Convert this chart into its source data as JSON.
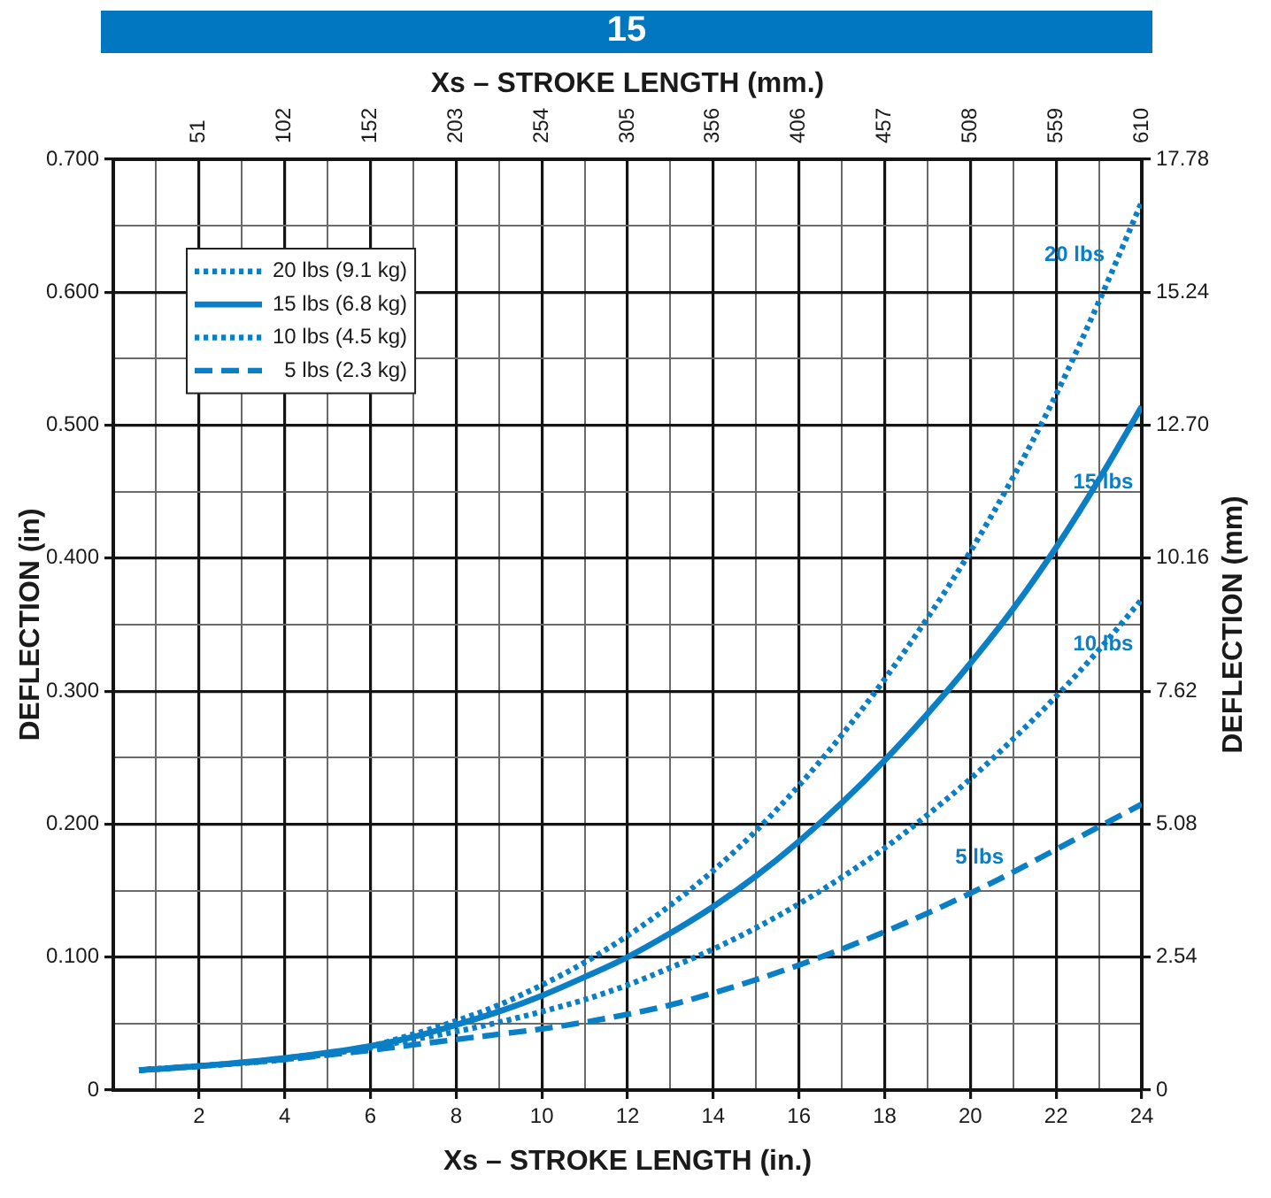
{
  "chart_data": {
    "type": "line",
    "title": "15",
    "xlabel": "Xs – STROKE LENGTH (in.)",
    "x2label": "Xs – STROKE LENGTH (mm.)",
    "ylabel": "DEFLECTION (in)",
    "y2label": "DEFLECTION (mm)",
    "x": [
      0.6,
      2,
      4,
      6,
      7,
      8,
      9,
      10,
      11,
      12,
      13,
      14,
      15,
      16,
      17,
      18,
      19,
      20,
      21,
      22,
      23,
      24
    ],
    "series": [
      {
        "name": "20 lbs (9.1 kg)",
        "color": "#0a7fc6",
        "line_style": "dotted",
        "values": [
          0.015,
          0.018,
          0.024,
          0.033,
          0.042,
          0.052,
          0.064,
          0.079,
          0.096,
          0.116,
          0.139,
          0.165,
          0.195,
          0.229,
          0.267,
          0.309,
          0.355,
          0.405,
          0.461,
          0.523,
          0.593,
          0.668
        ]
      },
      {
        "name": "15 lbs (6.8 kg)",
        "color": "#0a7fc6",
        "line_style": "solid",
        "values": [
          0.015,
          0.018,
          0.024,
          0.033,
          0.04,
          0.049,
          0.059,
          0.071,
          0.085,
          0.1,
          0.118,
          0.138,
          0.161,
          0.187,
          0.216,
          0.248,
          0.283,
          0.321,
          0.362,
          0.408,
          0.459,
          0.514
        ]
      },
      {
        "name": "10 lbs (4.5 kg)",
        "color": "#0a7fc6",
        "line_style": "dotted",
        "values": [
          0.015,
          0.018,
          0.023,
          0.032,
          0.038,
          0.044,
          0.051,
          0.059,
          0.068,
          0.079,
          0.092,
          0.106,
          0.122,
          0.14,
          0.16,
          0.182,
          0.207,
          0.234,
          0.264,
          0.296,
          0.331,
          0.369
        ]
      },
      {
        "name": "5 lbs (2.3 kg)",
        "color": "#0a7fc6",
        "line_style": "dashed",
        "values": [
          0.015,
          0.018,
          0.023,
          0.03,
          0.034,
          0.038,
          0.042,
          0.046,
          0.051,
          0.057,
          0.064,
          0.073,
          0.083,
          0.094,
          0.106,
          0.119,
          0.133,
          0.148,
          0.164,
          0.181,
          0.198,
          0.215
        ]
      }
    ],
    "xlim": [
      0,
      24
    ],
    "xticks": [
      {
        "value": 0,
        "label": null
      },
      {
        "value": 1,
        "label": null
      },
      2,
      {
        "value": 3,
        "label": null
      },
      4,
      {
        "value": 5,
        "label": null
      },
      6,
      {
        "value": 7,
        "label": null
      },
      8,
      {
        "value": 9,
        "label": null
      },
      10,
      {
        "value": 11,
        "label": null
      },
      12,
      {
        "value": 13,
        "label": null
      },
      14,
      {
        "value": 15,
        "label": null
      },
      16,
      {
        "value": 17,
        "label": null
      },
      18,
      {
        "value": 19,
        "label": null
      },
      20,
      {
        "value": 21,
        "label": null
      },
      22,
      {
        "value": 23,
        "label": null
      },
      24
    ],
    "x2lim": [
      0,
      609.6
    ],
    "x2ticks": [
      {
        "value": 50.8,
        "label": "51"
      },
      {
        "value": 101.6,
        "label": "102"
      },
      {
        "value": 152.4,
        "label": "152"
      },
      {
        "value": 203.2,
        "label": "203"
      },
      254,
      {
        "value": 304.8,
        "label": "305"
      },
      {
        "value": 355.6,
        "label": "356"
      },
      {
        "value": 406.4,
        "label": "406"
      },
      {
        "value": 457.2,
        "label": "457"
      },
      508,
      {
        "value": 558.8,
        "label": "559"
      },
      {
        "value": 609.6,
        "label": "610"
      }
    ],
    "ylim": [
      0,
      0.7
    ],
    "yticks": [
      0,
      {
        "value": 0.05,
        "label": null
      },
      {
        "value": 0.1,
        "label": "0.100"
      },
      {
        "value": 0.15,
        "label": null
      },
      {
        "value": 0.2,
        "label": "0.200"
      },
      {
        "value": 0.25,
        "label": null
      },
      {
        "value": 0.3,
        "label": "0.300"
      },
      {
        "value": 0.35,
        "label": null
      },
      {
        "value": 0.4,
        "label": "0.400"
      },
      {
        "value": 0.45,
        "label": null
      },
      {
        "value": 0.5,
        "label": "0.500"
      },
      {
        "value": 0.55,
        "label": null
      },
      {
        "value": 0.6,
        "label": "0.600"
      },
      {
        "value": 0.65,
        "label": null
      },
      {
        "value": 0.7,
        "label": "0.700"
      }
    ],
    "y2lim": [
      0,
      17.78
    ],
    "y2ticks": [
      0,
      2.54,
      5.08,
      7.62,
      10.16,
      {
        "value": 12.7,
        "label": "12.70"
      },
      15.24,
      17.78
    ],
    "annotations": [
      "20 lbs",
      {
        "text": "15 lbs",
        "x": 23.1,
        "y": 0.457
      },
      {
        "text": "10 lbs",
        "x": 23.1,
        "y": 0.335
      },
      "5 lbs"
    ],
    "grid": true,
    "legend": "top left"
  }
}
